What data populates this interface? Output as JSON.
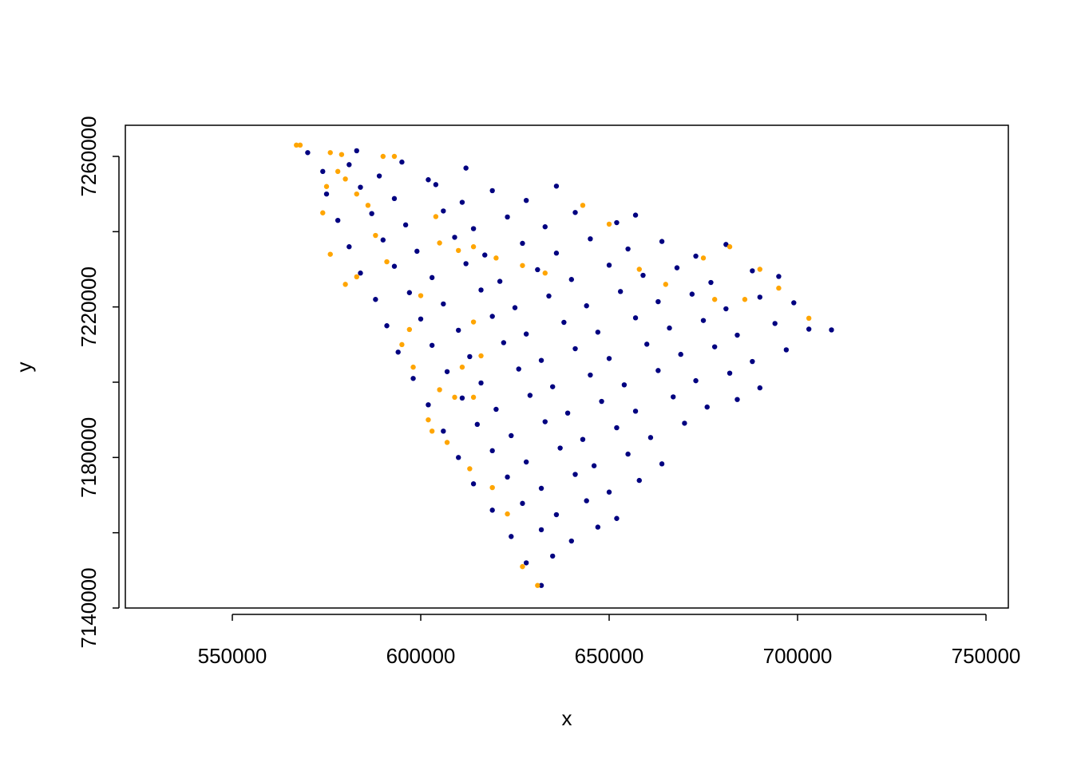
{
  "chart_data": {
    "type": "scatter",
    "xlabel": "x",
    "ylabel": "y",
    "xlim": [
      521610,
      755930
    ],
    "ylim": [
      7140000,
      7268270
    ],
    "xticks": [
      550000,
      600000,
      650000,
      700000,
      750000
    ],
    "yticks": [
      7140000,
      7180000,
      7220000,
      7260000
    ],
    "yminor_ticks": [
      7160000,
      7200000,
      7240000
    ],
    "series": [
      {
        "color": "#000080",
        "x": [
          570000,
          583000,
          574000,
          581000,
          589000,
          595000,
          602000,
          612000,
          575000,
          584000,
          593000,
          604000,
          611000,
          619000,
          628000,
          636000,
          578000,
          587000,
          596000,
          606000,
          614000,
          623000,
          633000,
          641000,
          652000,
          657000,
          581000,
          590000,
          599000,
          609000,
          617000,
          627000,
          636000,
          645000,
          655000,
          664000,
          673000,
          681000,
          584000,
          593000,
          603000,
          612000,
          621000,
          631000,
          640000,
          650000,
          659000,
          668000,
          677000,
          688000,
          695000,
          588000,
          597000,
          606000,
          616000,
          625000,
          634000,
          644000,
          653000,
          663000,
          672000,
          681000,
          690000,
          699000,
          591000,
          600000,
          610000,
          619000,
          628000,
          638000,
          647000,
          657000,
          666000,
          675000,
          684000,
          694000,
          703000,
          709000,
          594000,
          603000,
          613000,
          622000,
          632000,
          641000,
          650000,
          660000,
          669000,
          678000,
          688000,
          697000,
          598000,
          607000,
          616000,
          626000,
          635000,
          645000,
          654000,
          663000,
          673000,
          682000,
          690000,
          602000,
          611000,
          620000,
          629000,
          639000,
          648000,
          657000,
          667000,
          676000,
          684000,
          606000,
          615000,
          624000,
          633000,
          643000,
          652000,
          661000,
          670000,
          610000,
          619000,
          628000,
          637000,
          646000,
          655000,
          664000,
          614000,
          623000,
          632000,
          641000,
          650000,
          658000,
          619000,
          627000,
          636000,
          644000,
          652000,
          624000,
          632000,
          640000,
          647000,
          628000,
          635000,
          632000
        ],
        "values": [
          7261000,
          7261500,
          7256000,
          7257800,
          7254800,
          7258500,
          7253800,
          7256900,
          7250000,
          7251800,
          7248800,
          7252500,
          7247800,
          7250900,
          7248300,
          7252100,
          7243000,
          7244800,
          7241800,
          7245500,
          7240800,
          7243900,
          7241300,
          7245100,
          7242400,
          7244400,
          7236000,
          7237800,
          7234800,
          7238500,
          7233800,
          7236900,
          7234300,
          7238100,
          7235400,
          7237400,
          7233500,
          7236600,
          7229000,
          7230800,
          7227800,
          7231500,
          7226800,
          7229900,
          7227300,
          7231100,
          7228400,
          7230400,
          7226500,
          7229600,
          7228100,
          7222000,
          7223800,
          7220800,
          7224500,
          7219800,
          7222900,
          7220300,
          7224100,
          7221400,
          7223400,
          7219500,
          7222600,
          7221100,
          7215000,
          7216800,
          7213800,
          7217500,
          7212800,
          7215900,
          7213300,
          7217100,
          7214400,
          7216400,
          7212500,
          7215600,
          7214100,
          7213900,
          7208000,
          7209800,
          7206800,
          7210500,
          7205800,
          7208900,
          7206300,
          7210100,
          7207400,
          7209400,
          7205500,
          7208600,
          7201000,
          7202800,
          7199800,
          7203500,
          7198800,
          7201900,
          7199300,
          7203100,
          7200400,
          7202400,
          7198500,
          7194000,
          7195800,
          7192800,
          7196500,
          7191800,
          7194900,
          7192300,
          7196100,
          7193400,
          7195400,
          7187000,
          7188800,
          7185800,
          7189500,
          7184800,
          7187900,
          7185300,
          7189100,
          7180000,
          7181800,
          7178800,
          7182500,
          7177800,
          7180900,
          7178300,
          7173000,
          7174800,
          7171800,
          7175500,
          7170800,
          7173900,
          7166000,
          7167800,
          7164800,
          7168500,
          7163800,
          7159000,
          7160800,
          7157800,
          7161500,
          7152000,
          7153800,
          7146000
        ]
      },
      {
        "color": "#ffa500",
        "x": [
          567000,
          568000,
          576000,
          579000,
          590000,
          593000,
          578000,
          580000,
          575000,
          583000,
          574000,
          586000,
          576000,
          583000,
          580000,
          591000,
          588000,
          604000,
          605000,
          610000,
          614000,
          620000,
          627000,
          633000,
          643000,
          650000,
          658000,
          665000,
          675000,
          682000,
          690000,
          695000,
          703000,
          686000,
          678000,
          600000,
          597000,
          595000,
          598000,
          605000,
          609000,
          602000,
          603000,
          607000,
          611000,
          614000,
          616000,
          613000,
          619000,
          623000,
          627000,
          631000,
          614000
        ],
        "values": [
          7263000,
          7263000,
          7261000,
          7260500,
          7260000,
          7260000,
          7256000,
          7254000,
          7252000,
          7250000,
          7245000,
          7247000,
          7234000,
          7228000,
          7226000,
          7232000,
          7239000,
          7244000,
          7237000,
          7235000,
          7236000,
          7233000,
          7231000,
          7229000,
          7247000,
          7242000,
          7230000,
          7226000,
          7233000,
          7236000,
          7230000,
          7225000,
          7217000,
          7222000,
          7222000,
          7223000,
          7214000,
          7210000,
          7204000,
          7198000,
          7196000,
          7190000,
          7187000,
          7184000,
          7204000,
          7216000,
          7207000,
          7177000,
          7172000,
          7165000,
          7151000,
          7146000,
          7196000
        ]
      }
    ]
  }
}
